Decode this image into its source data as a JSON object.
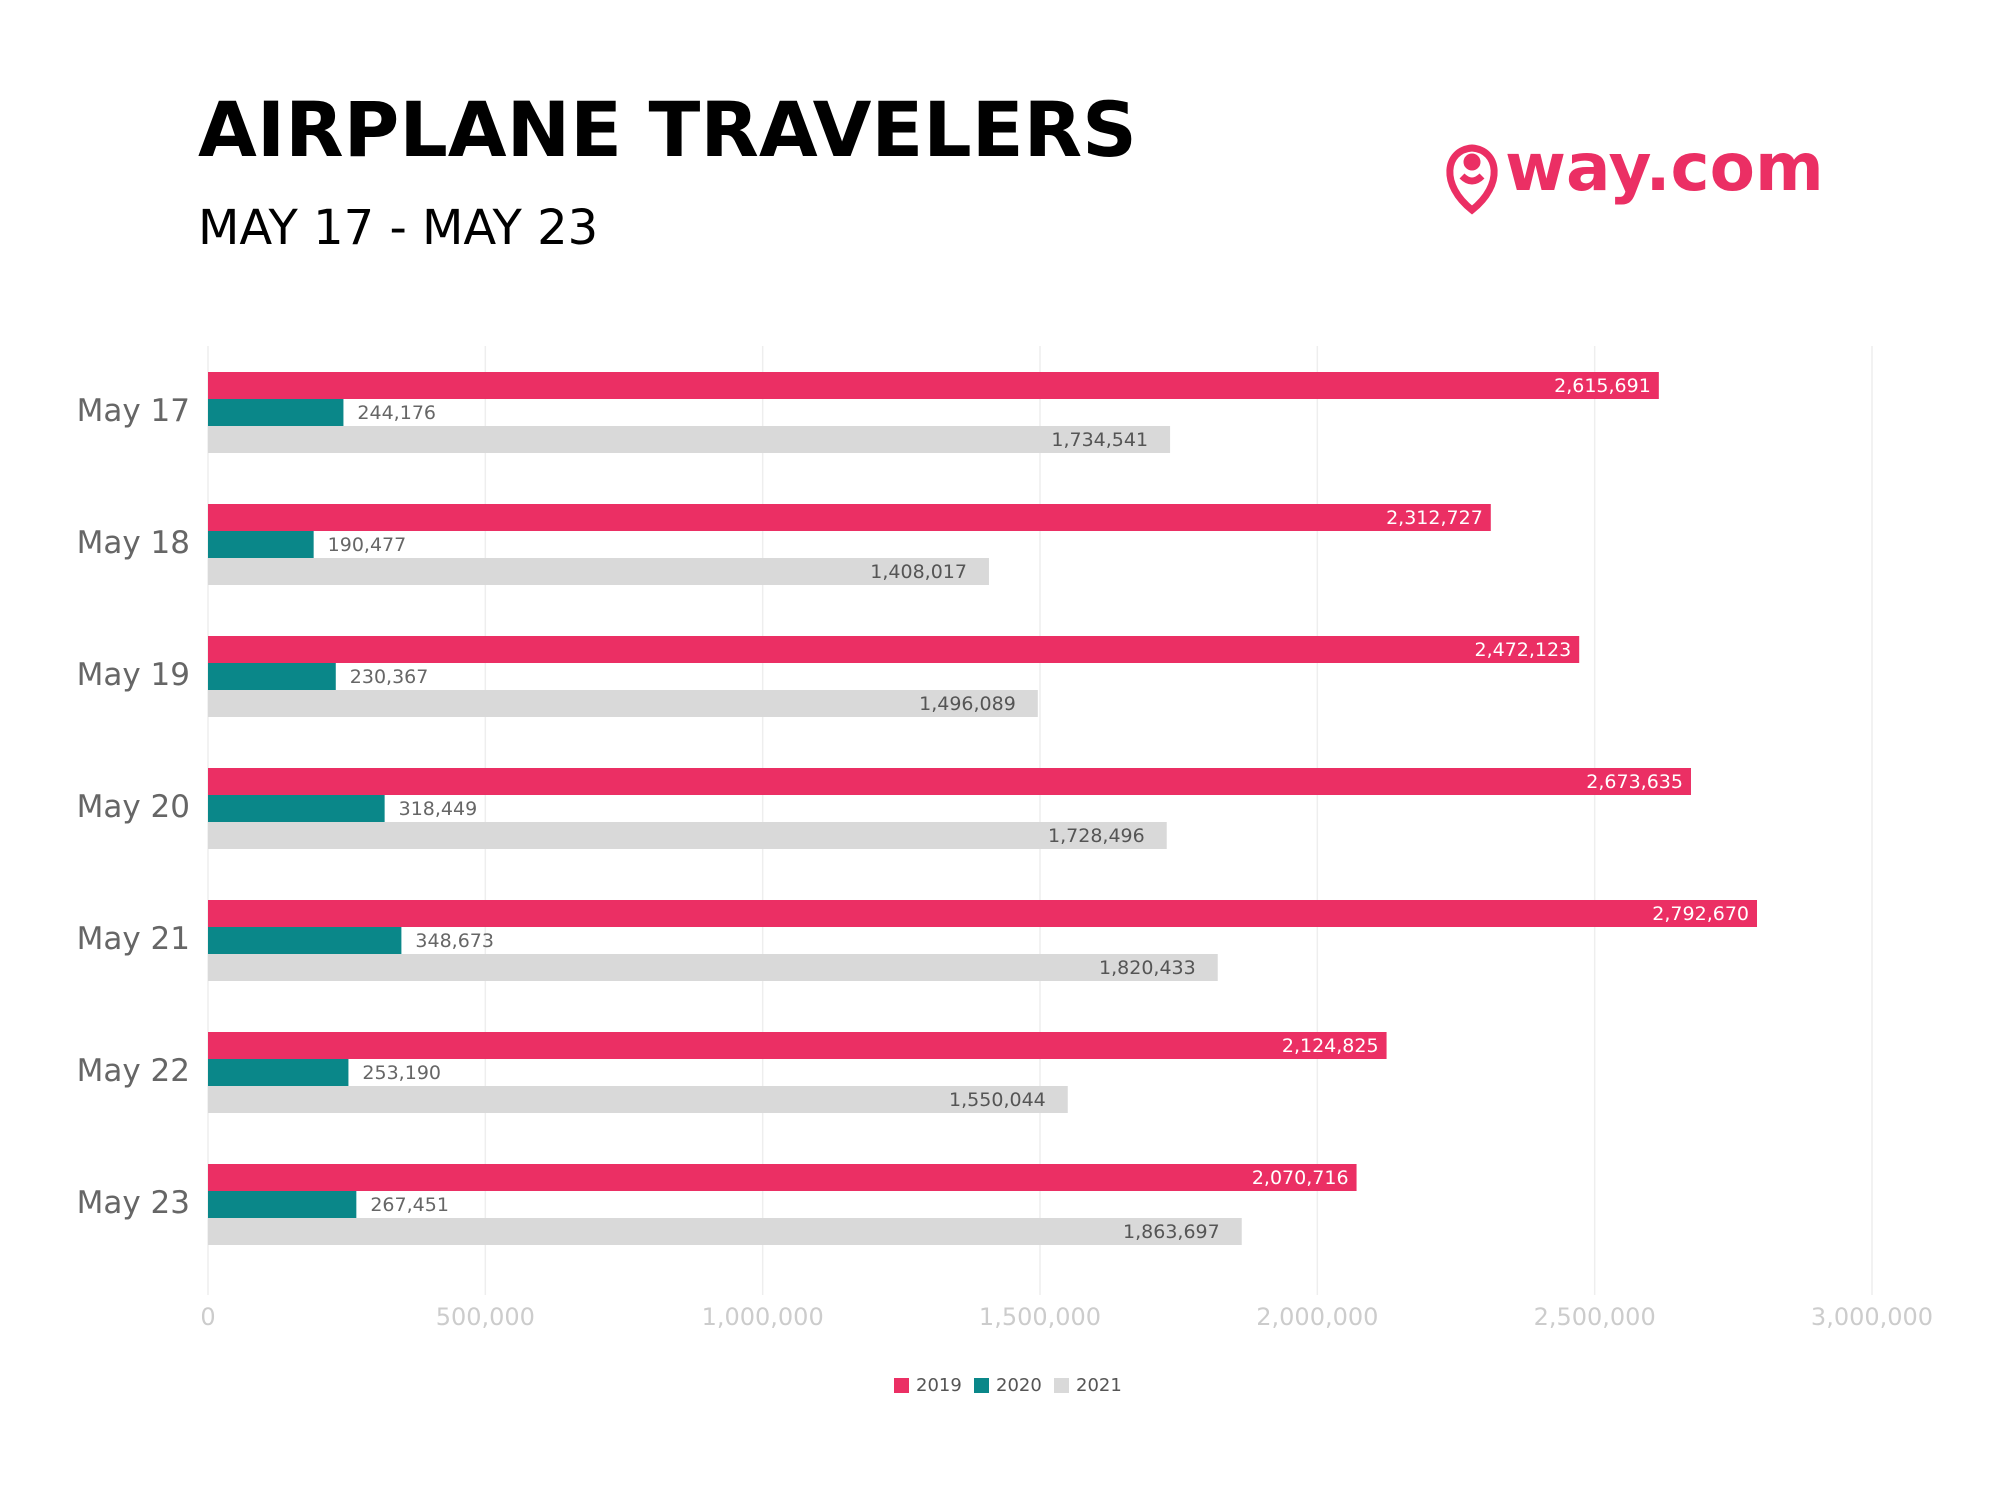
{
  "chart_data": {
    "type": "hbar",
    "title": "AIRPLANE TRAVELERS",
    "subtitle": "MAY 17 - MAY 23",
    "logo": "way.com",
    "categories": [
      "May 17",
      "May 18",
      "May 19",
      "May 20",
      "May 21",
      "May 22",
      "May 23"
    ],
    "series": [
      {
        "name": "2019",
        "color": "#eb2f64",
        "values": [
          2615691,
          2312727,
          2472123,
          2673635,
          2792670,
          2124825,
          2070716
        ],
        "value_labels": [
          "2,615,691",
          "2,312,727",
          "2,472,123",
          "2,673,635",
          "2,792,670",
          "2,124,825",
          "2,070,716"
        ]
      },
      {
        "name": "2020",
        "color": "#0a8789",
        "values": [
          244176,
          190477,
          230367,
          318449,
          348673,
          253190,
          267451
        ],
        "value_labels": [
          "244,176",
          "190,477",
          "230,367",
          "318,449",
          "348,673",
          "253,190",
          "267,451"
        ]
      },
      {
        "name": "2021",
        "color": "#d9d9d9",
        "values": [
          1734541,
          1408017,
          1496089,
          1728496,
          1820433,
          1550044,
          1863697
        ],
        "value_labels": [
          "1,734,541",
          "1,408,017",
          "1,496,089",
          "1,728,496",
          "1,820,433",
          "1,550,044",
          "1,863,697"
        ]
      }
    ],
    "xlim": [
      0,
      3000000
    ],
    "xticks": [
      0,
      {
        "value": 500000,
        "label": "500,000"
      },
      {
        "value": 1000000,
        "label": "1,000,000"
      },
      {
        "value": 1500000,
        "label": "1,500,000"
      },
      {
        "value": 2000000,
        "label": "2,000,000"
      },
      {
        "value": 2500000,
        "label": "2,500,000"
      },
      {
        "value": 3000000,
        "label": "3,000,000"
      }
    ],
    "grid": true,
    "legend": "bottom"
  }
}
